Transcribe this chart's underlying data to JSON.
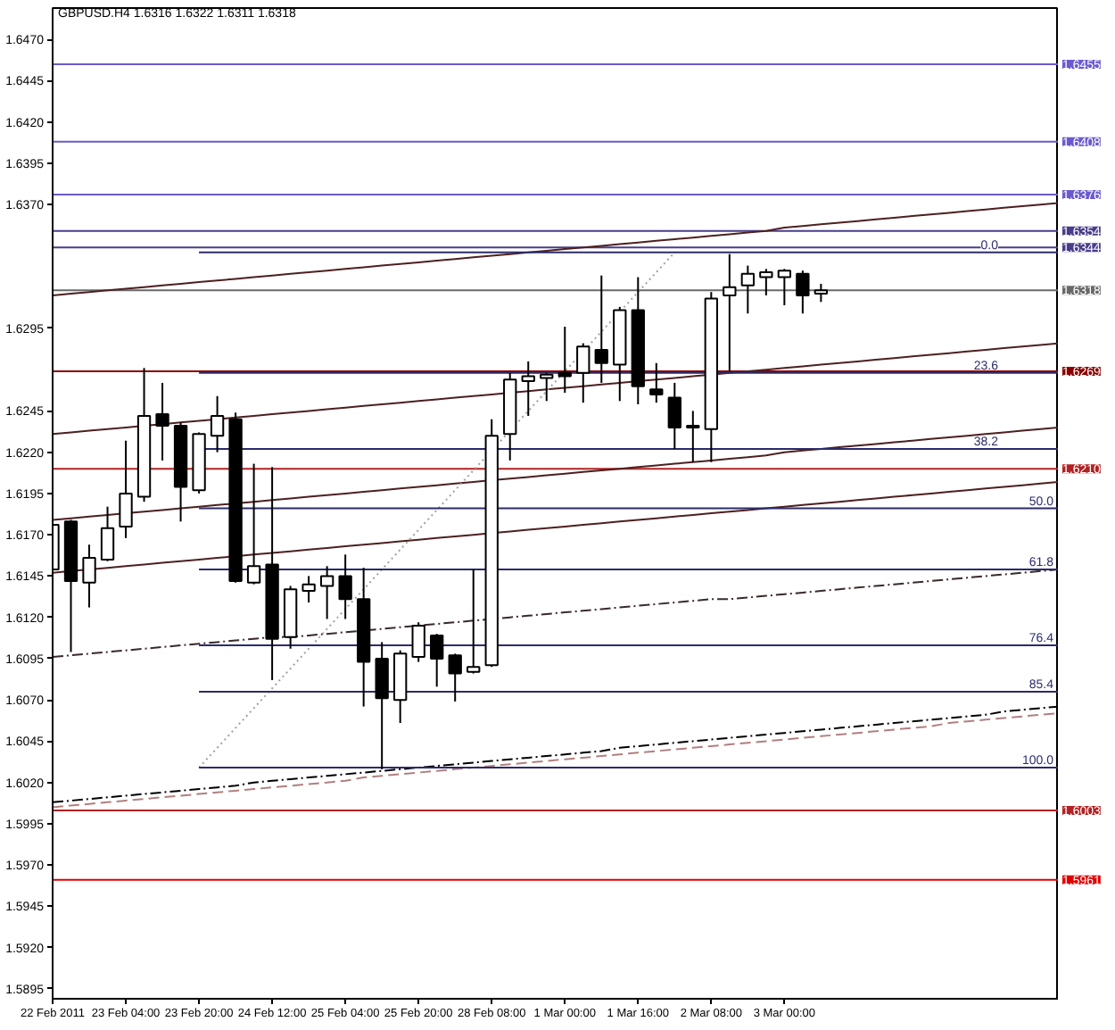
{
  "chart_data": {
    "type": "candlestick",
    "title": "GBPUSD.H4  1.6316 1.6322 1.6311 1.6318",
    "categories": [
      "22 Feb 2011",
      null,
      null,
      null,
      "23 Feb 04:00",
      null,
      null,
      null,
      "23 Feb 20:00",
      null,
      null,
      null,
      "24 Feb 12:00",
      null,
      null,
      null,
      "25 Feb 04:00",
      null,
      null,
      null,
      "25 Feb 20:00",
      null,
      null,
      null,
      "28 Feb 08:00",
      null,
      null,
      null,
      "1 Mar 00:00",
      null,
      null,
      null,
      "1 Mar 16:00",
      null,
      null,
      null,
      "2 Mar 08:00",
      null,
      null,
      null,
      "3 Mar 00:00",
      null,
      null,
      null,
      null,
      null,
      null,
      null,
      null,
      null,
      null,
      null,
      null,
      null,
      null,
      null
    ],
    "ohlc": [
      [
        1.6149,
        1.6178,
        1.6147,
        1.6176
      ],
      [
        1.6178,
        1.6179,
        1.6099,
        1.6142
      ],
      [
        1.6141,
        1.6164,
        1.6126,
        1.6156
      ],
      [
        1.6155,
        1.6187,
        1.6154,
        1.6174
      ],
      [
        1.6175,
        1.6227,
        1.6168,
        1.6195
      ],
      [
        1.6193,
        1.6271,
        1.619,
        1.6242
      ],
      [
        1.6243,
        1.6262,
        1.6215,
        1.6236
      ],
      [
        1.6236,
        1.6238,
        1.6178,
        1.6199
      ],
      [
        1.6197,
        1.6232,
        1.6195,
        1.6231
      ],
      [
        1.623,
        1.6254,
        1.622,
        1.6242
      ],
      [
        1.624,
        1.6244,
        1.6141,
        1.6142
      ],
      [
        1.6141,
        1.6213,
        1.614,
        1.6151
      ],
      [
        1.6152,
        1.6211,
        1.6082,
        1.6107
      ],
      [
        1.6108,
        1.6139,
        1.6101,
        1.6137
      ],
      [
        1.6136,
        1.6145,
        1.6129,
        1.614
      ],
      [
        1.6139,
        1.6151,
        1.6119,
        1.6145
      ],
      [
        1.6145,
        1.6158,
        1.6119,
        1.6131
      ],
      [
        1.6131,
        1.615,
        1.6066,
        1.6093
      ],
      [
        1.6095,
        1.6105,
        1.6028,
        1.6071
      ],
      [
        1.607,
        1.61,
        1.6056,
        1.6098
      ],
      [
        1.6096,
        1.6117,
        1.6093,
        1.6115
      ],
      [
        1.6109,
        1.611,
        1.6078,
        1.6095
      ],
      [
        1.6097,
        1.6098,
        1.6069,
        1.6086
      ],
      [
        1.6087,
        1.6149,
        1.6086,
        1.609
      ],
      [
        1.6091,
        1.624,
        1.609,
        1.623
      ],
      [
        1.6231,
        1.6268,
        1.6215,
        1.6264
      ],
      [
        1.6263,
        1.6275,
        1.6242,
        1.6266
      ],
      [
        1.6265,
        1.6268,
        1.6251,
        1.6267
      ],
      [
        1.6268,
        1.6296,
        1.6256,
        1.6266
      ],
      [
        1.6268,
        1.6286,
        1.625,
        1.6284
      ],
      [
        1.6282,
        1.6327,
        1.6262,
        1.6274
      ],
      [
        1.6273,
        1.6308,
        1.6251,
        1.6306
      ],
      [
        1.6306,
        1.6326,
        1.6249,
        1.626
      ],
      [
        1.6258,
        1.6274,
        1.625,
        1.6255
      ],
      [
        1.6253,
        1.6262,
        1.6222,
        1.6235
      ],
      [
        1.6235,
        1.6245,
        1.6214,
        1.6236
      ],
      [
        1.6234,
        1.6317,
        1.6214,
        1.6313
      ],
      [
        1.6315,
        1.634,
        1.6269,
        1.632
      ],
      [
        1.6321,
        1.6333,
        1.6304,
        1.6328
      ],
      [
        1.6326,
        1.6331,
        1.6315,
        1.6329
      ],
      [
        1.6326,
        1.6331,
        1.6309,
        1.633
      ],
      [
        1.6328,
        1.633,
        1.6304,
        1.6315
      ],
      [
        1.6316,
        1.6322,
        1.6311,
        1.6318
      ],
      null,
      null,
      null,
      null,
      null,
      null,
      null,
      null,
      null,
      null,
      null,
      null,
      null
    ],
    "color": "#000000",
    "colors": [
      "#ffffff",
      "#000000",
      "#ffffff",
      "#ffffff",
      "#ffffff",
      "#ffffff",
      "#000000",
      "#000000",
      "#ffffff",
      "#ffffff",
      "#000000",
      "#ffffff",
      "#000000",
      "#ffffff",
      "#ffffff",
      "#ffffff",
      "#000000",
      "#000000",
      "#000000",
      "#ffffff",
      "#ffffff",
      "#000000",
      "#000000",
      "#ffffff",
      "#ffffff",
      "#ffffff",
      "#ffffff",
      "#ffffff",
      "#000000",
      "#ffffff",
      "#000000",
      "#ffffff",
      "#000000",
      "#000000",
      "#000000",
      "#ffffff",
      "#ffffff",
      "#ffffff",
      "#ffffff",
      "#ffffff",
      "#ffffff",
      "#000000",
      "#ffffff",
      null,
      null,
      null,
      null,
      null,
      null,
      null,
      null,
      null,
      null,
      null,
      null,
      null
    ],
    "series": [
      {
        "type": "line",
        "color": "#4d2020",
        "line_style": "solid",
        "values": [
          1.6315,
          1.6316,
          1.6317,
          1.6318,
          1.6319,
          1.632,
          1.6321,
          1.6322,
          1.6323,
          1.6324,
          1.6325,
          1.6326,
          1.6327,
          1.6328,
          1.6329,
          1.633,
          1.6331,
          1.6332,
          1.6333,
          1.6334,
          1.6335,
          1.6336,
          1.6337,
          1.6338,
          1.6339,
          1.634,
          1.6341,
          1.6342,
          1.6343,
          1.6344,
          1.6345,
          1.6346,
          1.6347,
          1.6348,
          1.6349,
          1.635,
          1.6351,
          1.6352,
          1.6353,
          1.6354,
          1.6356,
          1.6357,
          1.6358,
          1.6359,
          1.636,
          1.6361,
          1.6362,
          1.6363,
          1.6364,
          1.6365,
          1.6366,
          1.6367,
          1.6368,
          1.6369,
          1.637,
          1.6371
        ]
      },
      {
        "type": "line",
        "color": "#4d2020",
        "line_style": "solid",
        "values": [
          1.6231,
          1.6232,
          1.6233,
          1.6234,
          1.6235,
          1.6236,
          1.6237,
          1.6238,
          1.6239,
          1.624,
          1.6241,
          1.6242,
          1.6243,
          1.6244,
          1.6245,
          1.6246,
          1.6247,
          1.6248,
          1.6249,
          1.625,
          1.6251,
          1.6252,
          1.6253,
          1.6254,
          1.6255,
          1.6256,
          1.6257,
          1.6258,
          1.6259,
          1.626,
          1.6261,
          1.6262,
          1.6263,
          1.6264,
          1.6265,
          1.6266,
          1.6267,
          1.6268,
          1.6269,
          1.627,
          1.6271,
          1.6272,
          1.6273,
          1.6274,
          1.6275,
          1.6276,
          1.6277,
          1.6278,
          1.6279,
          1.628,
          1.6281,
          1.6282,
          1.6283,
          1.6284,
          1.6285,
          1.6286
        ]
      },
      {
        "type": "line",
        "color": "#4d2020",
        "line_style": "solid",
        "values": [
          1.6179,
          1.618,
          1.6181,
          1.6182,
          1.6183,
          1.6184,
          1.6185,
          1.6186,
          1.6187,
          1.6188,
          1.6189,
          1.619,
          1.6191,
          1.6192,
          1.6193,
          1.6194,
          1.6195,
          1.6196,
          1.6197,
          1.6198,
          1.6199,
          1.62,
          1.6201,
          1.6202,
          1.6203,
          1.6204,
          1.6205,
          1.6206,
          1.6207,
          1.6208,
          1.6209,
          1.621,
          1.6211,
          1.6212,
          1.6213,
          1.6214,
          1.6215,
          1.6216,
          1.6217,
          1.6218,
          1.622,
          1.6221,
          1.6222,
          1.6223,
          1.6224,
          1.6225,
          1.6226,
          1.6227,
          1.6228,
          1.6229,
          1.623,
          1.6231,
          1.6232,
          1.6233,
          1.6234,
          1.6235
        ]
      },
      {
        "type": "line",
        "color": "#4d2020",
        "line_style": "solid",
        "values": [
          1.6147,
          1.6148,
          1.6149,
          1.615,
          1.6151,
          1.6152,
          1.6153,
          1.6154,
          1.6155,
          1.6156,
          1.6157,
          1.6158,
          1.6159,
          1.616,
          1.6161,
          1.6162,
          1.6163,
          1.6164,
          1.6165,
          1.6166,
          1.6167,
          1.6168,
          1.6169,
          1.617,
          1.6171,
          1.6172,
          1.6173,
          1.6174,
          1.6175,
          1.6176,
          1.6177,
          1.6178,
          1.6179,
          1.618,
          1.6181,
          1.6182,
          1.6183,
          1.6184,
          1.6185,
          1.6186,
          1.6187,
          1.6188,
          1.6189,
          1.619,
          1.6191,
          1.6192,
          1.6193,
          1.6194,
          1.6195,
          1.6196,
          1.6197,
          1.6198,
          1.6199,
          1.62,
          1.6201,
          1.6202
        ]
      },
      {
        "type": "line",
        "color": "#3a2a2a",
        "line_style": "dashdot",
        "values": [
          1.6096,
          1.6097,
          1.6098,
          1.6099,
          1.61,
          1.6101,
          1.6102,
          1.6103,
          1.6104,
          1.6105,
          1.6106,
          1.6107,
          1.6108,
          1.6108,
          1.6109,
          1.611,
          1.6111,
          1.6112,
          1.6113,
          1.6114,
          1.6115,
          1.6116,
          1.6117,
          1.6118,
          1.6119,
          1.612,
          1.6121,
          1.6122,
          1.6123,
          1.6124,
          1.6125,
          1.6126,
          1.6127,
          1.6128,
          1.6129,
          1.613,
          1.6131,
          1.6131,
          1.6132,
          1.6133,
          1.6134,
          1.6135,
          1.6136,
          1.6137,
          1.6138,
          1.6139,
          1.614,
          1.6141,
          1.6142,
          1.6143,
          1.6144,
          1.6145,
          1.6146,
          1.6147,
          1.6148,
          1.6149
        ]
      },
      {
        "type": "line",
        "color": "#000000",
        "line_style": "dashdot",
        "values": [
          1.6008,
          1.6009,
          1.601,
          1.6011,
          1.6012,
          1.6013,
          1.6014,
          1.6015,
          1.6016,
          1.6017,
          1.6018,
          1.602,
          1.6021,
          1.6022,
          1.6023,
          1.6024,
          1.6025,
          1.6026,
          1.6027,
          1.6028,
          1.6029,
          1.603,
          1.6031,
          1.6032,
          1.6033,
          1.6034,
          1.6035,
          1.6036,
          1.6037,
          1.6038,
          1.6039,
          1.6041,
          1.6042,
          1.6043,
          1.6044,
          1.6045,
          1.6046,
          1.6047,
          1.6048,
          1.6049,
          1.605,
          1.6051,
          1.6052,
          1.6053,
          1.6054,
          1.6055,
          1.6056,
          1.6057,
          1.6058,
          1.6059,
          1.606,
          1.6061,
          1.6063,
          1.6064,
          1.6065,
          1.6066
        ]
      },
      {
        "type": "line",
        "color": "#b08080",
        "line_style": "dashed",
        "values": [
          1.6005,
          1.6006,
          1.6007,
          1.6008,
          1.6009,
          1.601,
          1.6011,
          1.6012,
          1.6013,
          1.6014,
          1.6015,
          1.6016,
          1.6017,
          1.6018,
          1.6019,
          1.602,
          1.6021,
          1.6023,
          1.6024,
          1.6025,
          1.6026,
          1.6027,
          1.6028,
          1.6029,
          1.603,
          1.6031,
          1.6032,
          1.6033,
          1.6034,
          1.6035,
          1.6036,
          1.6037,
          1.6038,
          1.6039,
          1.604,
          1.6041,
          1.6042,
          1.6043,
          1.6044,
          1.6045,
          1.6046,
          1.6047,
          1.6048,
          1.6049,
          1.605,
          1.6051,
          1.6052,
          1.6053,
          1.6054,
          1.6056,
          1.6057,
          1.6058,
          1.6059,
          1.606,
          1.6061,
          1.6062
        ]
      },
      {
        "type": "line",
        "color": "#a0a0a0",
        "line_style": "dotted",
        "values": [
          null,
          null,
          null,
          null,
          null,
          null,
          null,
          null,
          1.6029,
          1.6041,
          1.6053,
          1.6065,
          1.6077,
          1.6089,
          1.6101,
          1.6113,
          1.6125,
          1.6137,
          1.6149,
          1.6161,
          1.6173,
          1.6185,
          1.6197,
          1.6209,
          1.6221,
          1.6233,
          1.6245,
          1.6257,
          1.6269,
          1.6281,
          1.6293,
          1.6305,
          1.6317,
          1.6329,
          1.6341,
          null,
          null,
          null,
          null,
          null,
          null,
          null,
          null,
          null,
          null,
          null,
          null,
          null,
          null,
          null,
          null,
          null,
          null,
          null,
          null,
          null
        ]
      },
      {
        "type": "line",
        "name": "0.0",
        "color": "#2b2b6b",
        "line_style": "solid",
        "values": [
          null,
          null,
          null,
          null,
          null,
          null,
          null,
          null,
          1.6341,
          1.6341,
          1.6341,
          1.6341,
          1.6341,
          1.6341,
          1.6341,
          1.6341,
          1.6341,
          1.6341,
          1.6341,
          1.6341,
          1.6341,
          1.6341,
          1.6341,
          1.6341,
          1.6341,
          1.6341,
          1.6341,
          1.6341,
          1.6341,
          1.6341,
          1.6341,
          1.6341,
          1.6341,
          1.6341,
          1.6341,
          1.6341,
          1.6341,
          1.6341,
          1.6341,
          1.6341,
          1.6341,
          1.6341,
          1.6341,
          1.6341,
          1.6341,
          1.6341,
          1.6341,
          1.6341,
          1.6341,
          1.6341,
          1.6341,
          1.6341,
          1.6341,
          1.6341,
          1.6341,
          1.6341
        ]
      },
      {
        "type": "line",
        "name": "23.6",
        "color": "#2b2b6b",
        "line_style": "solid",
        "values": [
          null,
          null,
          null,
          null,
          null,
          null,
          null,
          null,
          1.6268,
          1.6268,
          1.6268,
          1.6268,
          1.6268,
          1.6268,
          1.6268,
          1.6268,
          1.6268,
          1.6268,
          1.6268,
          1.6268,
          1.6268,
          1.6268,
          1.6268,
          1.6268,
          1.6268,
          1.6268,
          1.6268,
          1.6268,
          1.6268,
          1.6268,
          1.6268,
          1.6268,
          1.6268,
          1.6268,
          1.6268,
          1.6268,
          1.6268,
          1.6268,
          1.6268,
          1.6268,
          1.6268,
          1.6268,
          1.6268,
          1.6268,
          1.6268,
          1.6268,
          1.6268,
          1.6268,
          1.6268,
          1.6268,
          1.6268,
          1.6268,
          1.6268,
          1.6268,
          1.6268,
          1.6268
        ]
      },
      {
        "type": "line",
        "name": "38.2",
        "color": "#2b2b6b",
        "line_style": "solid",
        "values": [
          null,
          null,
          null,
          null,
          null,
          null,
          null,
          null,
          1.6222,
          1.6222,
          1.6222,
          1.6222,
          1.6222,
          1.6222,
          1.6222,
          1.6222,
          1.6222,
          1.6222,
          1.6222,
          1.6222,
          1.6222,
          1.6222,
          1.6222,
          1.6222,
          1.6222,
          1.6222,
          1.6222,
          1.6222,
          1.6222,
          1.6222,
          1.6222,
          1.6222,
          1.6222,
          1.6222,
          1.6222,
          1.6222,
          1.6222,
          1.6222,
          1.6222,
          1.6222,
          1.6222,
          1.6222,
          1.6222,
          1.6222,
          1.6222,
          1.6222,
          1.6222,
          1.6222,
          1.6222,
          1.6222,
          1.6222,
          1.6222,
          1.6222,
          1.6222,
          1.6222,
          1.6222
        ]
      },
      {
        "type": "line",
        "name": "50.0",
        "color": "#2b2b6b",
        "line_style": "solid",
        "values": [
          null,
          null,
          null,
          null,
          null,
          null,
          null,
          null,
          1.6186,
          1.6186,
          1.6186,
          1.6186,
          1.6186,
          1.6186,
          1.6186,
          1.6186,
          1.6186,
          1.6186,
          1.6186,
          1.6186,
          1.6186,
          1.6186,
          1.6186,
          1.6186,
          1.6186,
          1.6186,
          1.6186,
          1.6186,
          1.6186,
          1.6186,
          1.6186,
          1.6186,
          1.6186,
          1.6186,
          1.6186,
          1.6186,
          1.6186,
          1.6186,
          1.6186,
          1.6186,
          1.6186,
          1.6186,
          1.6186,
          1.6186,
          1.6186,
          1.6186,
          1.6186,
          1.6186,
          1.6186,
          1.6186,
          1.6186,
          1.6186,
          1.6186,
          1.6186,
          1.6186,
          1.6186
        ]
      },
      {
        "type": "line",
        "name": "61.8",
        "color": "#2b2b6b",
        "line_style": "solid",
        "values": [
          null,
          null,
          null,
          null,
          null,
          null,
          null,
          null,
          1.6149,
          1.6149,
          1.6149,
          1.6149,
          1.6149,
          1.6149,
          1.6149,
          1.6149,
          1.6149,
          1.6149,
          1.6149,
          1.6149,
          1.6149,
          1.6149,
          1.6149,
          1.6149,
          1.6149,
          1.6149,
          1.6149,
          1.6149,
          1.6149,
          1.6149,
          1.6149,
          1.6149,
          1.6149,
          1.6149,
          1.6149,
          1.6149,
          1.6149,
          1.6149,
          1.6149,
          1.6149,
          1.6149,
          1.6149,
          1.6149,
          1.6149,
          1.6149,
          1.6149,
          1.6149,
          1.6149,
          1.6149,
          1.6149,
          1.6149,
          1.6149,
          1.6149,
          1.6149,
          1.6149,
          1.6149
        ]
      },
      {
        "type": "line",
        "name": "76.4",
        "color": "#2b2b6b",
        "line_style": "solid",
        "values": [
          null,
          null,
          null,
          null,
          null,
          null,
          null,
          null,
          1.6103,
          1.6103,
          1.6103,
          1.6103,
          1.6103,
          1.6103,
          1.6103,
          1.6103,
          1.6103,
          1.6103,
          1.6103,
          1.6103,
          1.6103,
          1.6103,
          1.6103,
          1.6103,
          1.6103,
          1.6103,
          1.6103,
          1.6103,
          1.6103,
          1.6103,
          1.6103,
          1.6103,
          1.6103,
          1.6103,
          1.6103,
          1.6103,
          1.6103,
          1.6103,
          1.6103,
          1.6103,
          1.6103,
          1.6103,
          1.6103,
          1.6103,
          1.6103,
          1.6103,
          1.6103,
          1.6103,
          1.6103,
          1.6103,
          1.6103,
          1.6103,
          1.6103,
          1.6103,
          1.6103,
          1.6103
        ]
      },
      {
        "type": "line",
        "name": "85.4",
        "color": "#2b2b6b",
        "line_style": "solid",
        "values": [
          null,
          null,
          null,
          null,
          null,
          null,
          null,
          null,
          1.6075,
          1.6075,
          1.6075,
          1.6075,
          1.6075,
          1.6075,
          1.6075,
          1.6075,
          1.6075,
          1.6075,
          1.6075,
          1.6075,
          1.6075,
          1.6075,
          1.6075,
          1.6075,
          1.6075,
          1.6075,
          1.6075,
          1.6075,
          1.6075,
          1.6075,
          1.6075,
          1.6075,
          1.6075,
          1.6075,
          1.6075,
          1.6075,
          1.6075,
          1.6075,
          1.6075,
          1.6075,
          1.6075,
          1.6075,
          1.6075,
          1.6075,
          1.6075,
          1.6075,
          1.6075,
          1.6075,
          1.6075,
          1.6075,
          1.6075,
          1.6075,
          1.6075,
          1.6075,
          1.6075,
          1.6075
        ]
      },
      {
        "type": "line",
        "name": "100.0",
        "color": "#2b2b6b",
        "line_style": "solid",
        "values": [
          null,
          null,
          null,
          null,
          null,
          null,
          null,
          null,
          1.6029,
          1.6029,
          1.6029,
          1.6029,
          1.6029,
          1.6029,
          1.6029,
          1.6029,
          1.6029,
          1.6029,
          1.6029,
          1.6029,
          1.6029,
          1.6029,
          1.6029,
          1.6029,
          1.6029,
          1.6029,
          1.6029,
          1.6029,
          1.6029,
          1.6029,
          1.6029,
          1.6029,
          1.6029,
          1.6029,
          1.6029,
          1.6029,
          1.6029,
          1.6029,
          1.6029,
          1.6029,
          1.6029,
          1.6029,
          1.6029,
          1.6029,
          1.6029,
          1.6029,
          1.6029,
          1.6029,
          1.6029,
          1.6029,
          1.6029,
          1.6029,
          1.6029,
          1.6029,
          1.6029,
          1.6029
        ]
      }
    ],
    "ref_lines": [
      {
        "axis": "y",
        "value": 1.6455,
        "label": "1.6455",
        "color": "#6a5acd"
      },
      {
        "axis": "y",
        "value": 1.6408,
        "label": "1.6408",
        "color": "#6a5acd"
      },
      {
        "axis": "y",
        "value": 1.6376,
        "label": "1.6376",
        "color": "#6a5acd"
      },
      {
        "axis": "y",
        "value": 1.6354,
        "label": "1.6354",
        "color": "#483d8b"
      },
      {
        "axis": "y",
        "value": 1.6344,
        "label": "1.6344",
        "color": "#483d8b"
      },
      {
        "axis": "y",
        "value": 1.6318,
        "label": "1.6318",
        "color": "#696969"
      },
      {
        "axis": "y",
        "value": 1.6269,
        "label": "1.6269",
        "color": "#8b0000"
      },
      {
        "axis": "y",
        "value": 1.621,
        "label": "1.6210",
        "color": "#b22222"
      },
      {
        "axis": "y",
        "value": 1.6003,
        "label": "1.6003",
        "color": "#b22222"
      },
      {
        "axis": "y",
        "value": 1.5961,
        "label": "1.5961",
        "color": "#e00000"
      }
    ],
    "ylim": [
      1.5889,
      1.6489
    ],
    "yticks": [
      {
        "value": 1.647,
        "label": "1.6470"
      },
      1.6445,
      {
        "value": 1.642,
        "label": "1.6420"
      },
      1.6395,
      {
        "value": 1.637,
        "label": "1.6370"
      },
      1.6295,
      1.6245,
      {
        "value": 1.622,
        "label": "1.6220"
      },
      1.6195,
      {
        "value": 1.617,
        "label": "1.6170"
      },
      1.6145,
      {
        "value": 1.612,
        "label": "1.6120"
      },
      1.6095,
      {
        "value": 1.607,
        "label": "1.6070"
      },
      1.6045,
      {
        "value": 1.602,
        "label": "1.6020"
      },
      1.5995,
      {
        "value": 1.597,
        "label": "1.5970"
      },
      1.5945,
      {
        "value": 1.592,
        "label": "1.5920"
      },
      1.5895
    ]
  }
}
